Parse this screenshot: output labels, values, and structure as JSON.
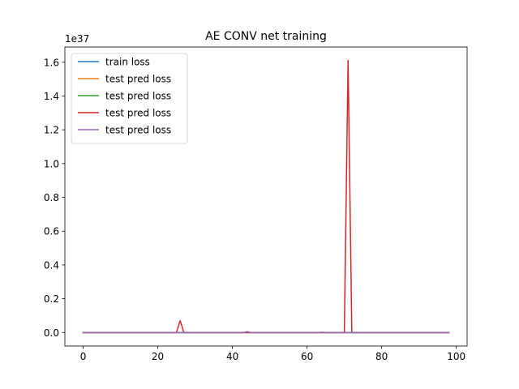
{
  "chart_data": {
    "type": "line",
    "title": "AE CONV net training",
    "xlabel": "",
    "ylabel": "",
    "y_offset_label": "1e37",
    "xlim": [
      -4.9,
      102.9
    ],
    "ylim": [
      -0.08,
      1.69
    ],
    "x_ticks": [
      0,
      20,
      40,
      60,
      80,
      100
    ],
    "x_tick_labels": [
      "0",
      "20",
      "40",
      "60",
      "80",
      "100"
    ],
    "y_ticks": [
      0.0,
      0.2,
      0.4,
      0.6,
      0.8,
      1.0,
      1.2,
      1.4,
      1.6
    ],
    "y_tick_labels": [
      "0.0",
      "0.2",
      "0.4",
      "0.6",
      "0.8",
      "1.0",
      "1.2",
      "1.4",
      "1.6"
    ],
    "grid": false,
    "legend_position": "top-left",
    "x_range": [
      0,
      98
    ],
    "series": [
      {
        "name": "train loss",
        "color": "#1f77b4",
        "points": [
          [
            0,
            0
          ],
          [
            98,
            0
          ]
        ]
      },
      {
        "name": "test pred loss",
        "color": "#ff7f0e",
        "points": [
          [
            0,
            0
          ],
          [
            98,
            0
          ]
        ]
      },
      {
        "name": "test pred loss",
        "color": "#2ca02c",
        "points": [
          [
            0,
            0
          ],
          [
            98,
            0
          ]
        ]
      },
      {
        "name": "test pred loss",
        "color": "#d62728",
        "points": [
          [
            0,
            0
          ],
          [
            25,
            0
          ],
          [
            26,
            0.07
          ],
          [
            27,
            0
          ],
          [
            70,
            0
          ],
          [
            71,
            1.61
          ],
          [
            72,
            0
          ],
          [
            98,
            0
          ]
        ]
      },
      {
        "name": "test pred loss",
        "color": "#9467bd",
        "points": [
          [
            0,
            0
          ],
          [
            43,
            0
          ],
          [
            44,
            0.005
          ],
          [
            45,
            0
          ],
          [
            63,
            0
          ],
          [
            64,
            0.002
          ],
          [
            65,
            0
          ],
          [
            98,
            0
          ]
        ]
      }
    ]
  }
}
